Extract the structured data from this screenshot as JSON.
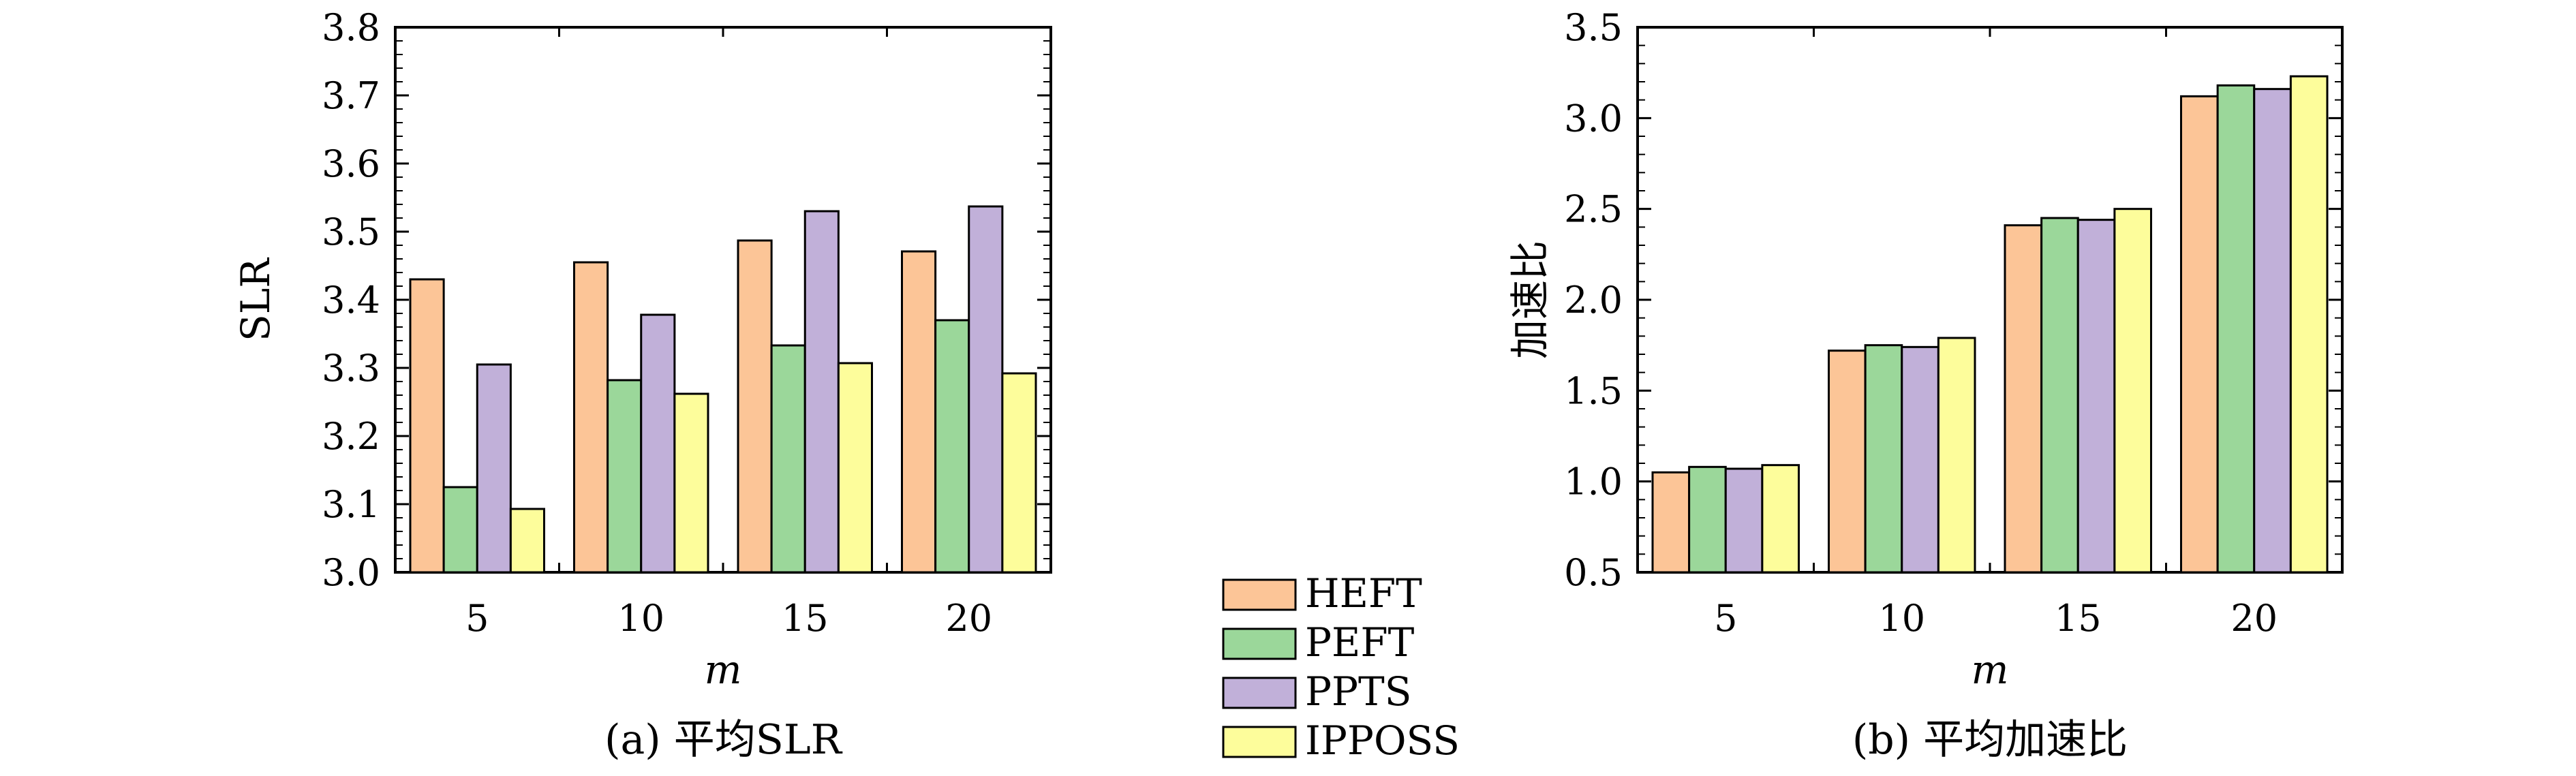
{
  "colors": {
    "HEFT": "#fcc597",
    "PEFT": "#9bd79a",
    "PPTS": "#c1b0d9",
    "IPPOSS": "#fdfd9b",
    "stroke": "#000000"
  },
  "legend": {
    "items": [
      {
        "label": "HEFT"
      },
      {
        "label": "PEFT"
      },
      {
        "label": "PPTS"
      },
      {
        "label": "IPPOSS"
      }
    ]
  },
  "chart_data": [
    {
      "type": "bar",
      "caption": "(a) 平均SLR",
      "xlabel": "m",
      "ylabel": "SLR",
      "categories": [
        "5",
        "10",
        "15",
        "20"
      ],
      "ylim": [
        3.0,
        3.8
      ],
      "yticks": [
        "3.0",
        "3.1",
        "3.2",
        "3.3",
        "3.4",
        "3.5",
        "3.6",
        "3.7",
        "3.8"
      ],
      "series": [
        {
          "name": "HEFT",
          "values": [
            3.43,
            3.455,
            3.487,
            3.471
          ]
        },
        {
          "name": "PEFT",
          "values": [
            3.125,
            3.282,
            3.333,
            3.37
          ]
        },
        {
          "name": "PPTS",
          "values": [
            3.305,
            3.378,
            3.53,
            3.537
          ]
        },
        {
          "name": "IPPOSS",
          "values": [
            3.093,
            3.262,
            3.307,
            3.292
          ]
        }
      ]
    },
    {
      "type": "bar",
      "caption": "(b) 平均加速比",
      "xlabel": "m",
      "ylabel": "加速比",
      "categories": [
        "5",
        "10",
        "15",
        "20"
      ],
      "ylim": [
        0.5,
        3.5
      ],
      "yticks": [
        "0.5",
        "1.0",
        "1.5",
        "2.0",
        "2.5",
        "3.0",
        "3.5"
      ],
      "series": [
        {
          "name": "HEFT",
          "values": [
            1.05,
            1.72,
            2.41,
            3.12
          ]
        },
        {
          "name": "PEFT",
          "values": [
            1.08,
            1.75,
            2.45,
            3.18
          ]
        },
        {
          "name": "PPTS",
          "values": [
            1.07,
            1.74,
            2.44,
            3.16
          ]
        },
        {
          "name": "IPPOSS",
          "values": [
            1.09,
            1.79,
            2.5,
            3.23
          ]
        }
      ]
    }
  ]
}
